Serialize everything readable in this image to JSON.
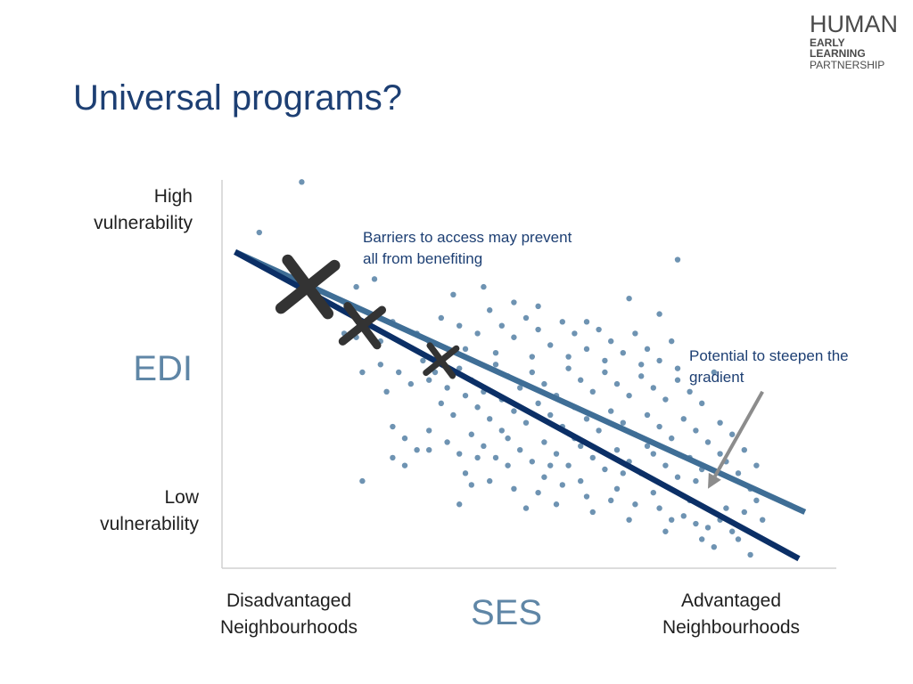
{
  "slide": {
    "title": "Universal programs?",
    "logo": {
      "line1": "HUMAN",
      "line2": "EARLY LEARNING",
      "line3": "PARTNERSHIP"
    }
  },
  "colors": {
    "title": "#1d3f73",
    "axis_title": "#5f86a6",
    "points": "#6e93b2",
    "line_light": "#3f6e96",
    "line_dark": "#0b2f66",
    "marker": "#333333",
    "arrow": "#8c8c8c"
  },
  "chart_data": {
    "type": "scatter",
    "x_label": "SES",
    "y_label": "EDI",
    "x_tick_labels": [
      "Disadvantaged Neighbourhoods",
      "Advantaged Neighbourhoods"
    ],
    "y_tick_labels": [
      "High vulnerability",
      "Low vulnerability"
    ],
    "x_range": [
      0,
      100
    ],
    "y_range": [
      0,
      100
    ],
    "y_direction": "top is high vulnerability",
    "grid": false,
    "annotations": [
      "Barriers to access may prevent all from benefiting",
      "Potential to steepen the gradient"
    ],
    "lines": [
      {
        "color": "light",
        "from": [
          2,
          81
        ],
        "to": [
          96,
          14
        ]
      },
      {
        "color": "dark",
        "from": [
          2,
          81
        ],
        "to": [
          95,
          2
        ]
      }
    ],
    "markers": [
      {
        "x": 14,
        "y": 72,
        "size": "large"
      },
      {
        "x": 23,
        "y": 62,
        "size": "medium"
      },
      {
        "x": 36,
        "y": 53,
        "size": "small"
      }
    ],
    "arrow": {
      "from": [
        89,
        45
      ],
      "to": [
        80,
        20
      ]
    },
    "points": [
      [
        13,
        99
      ],
      [
        6,
        86
      ],
      [
        75,
        79
      ],
      [
        22,
        72
      ],
      [
        25,
        74
      ],
      [
        38,
        70
      ],
      [
        43,
        72
      ],
      [
        52,
        67
      ],
      [
        67,
        69
      ],
      [
        72,
        65
      ],
      [
        20,
        60
      ],
      [
        22,
        59
      ],
      [
        26,
        58
      ],
      [
        28,
        63
      ],
      [
        32,
        60
      ],
      [
        34,
        58
      ],
      [
        36,
        64
      ],
      [
        39,
        62
      ],
      [
        42,
        60
      ],
      [
        44,
        66
      ],
      [
        46,
        62
      ],
      [
        48,
        59
      ],
      [
        50,
        64
      ],
      [
        52,
        61
      ],
      [
        54,
        57
      ],
      [
        56,
        63
      ],
      [
        58,
        60
      ],
      [
        60,
        56
      ],
      [
        62,
        61
      ],
      [
        64,
        58
      ],
      [
        66,
        55
      ],
      [
        68,
        60
      ],
      [
        70,
        56
      ],
      [
        72,
        53
      ],
      [
        74,
        58
      ],
      [
        26,
        52
      ],
      [
        29,
        50
      ],
      [
        31,
        47
      ],
      [
        33,
        53
      ],
      [
        35,
        50
      ],
      [
        37,
        46
      ],
      [
        39,
        51
      ],
      [
        41,
        48
      ],
      [
        43,
        45
      ],
      [
        45,
        52
      ],
      [
        47,
        49
      ],
      [
        49,
        46
      ],
      [
        51,
        50
      ],
      [
        53,
        47
      ],
      [
        55,
        44
      ],
      [
        57,
        51
      ],
      [
        59,
        48
      ],
      [
        61,
        45
      ],
      [
        63,
        50
      ],
      [
        65,
        47
      ],
      [
        67,
        44
      ],
      [
        69,
        49
      ],
      [
        71,
        46
      ],
      [
        73,
        43
      ],
      [
        75,
        48
      ],
      [
        77,
        45
      ],
      [
        79,
        42
      ],
      [
        23,
        50
      ],
      [
        27,
        45
      ],
      [
        36,
        42
      ],
      [
        38,
        39
      ],
      [
        40,
        44
      ],
      [
        42,
        41
      ],
      [
        44,
        38
      ],
      [
        46,
        43
      ],
      [
        48,
        40
      ],
      [
        50,
        37
      ],
      [
        52,
        42
      ],
      [
        54,
        39
      ],
      [
        56,
        36
      ],
      [
        58,
        41
      ],
      [
        60,
        38
      ],
      [
        62,
        35
      ],
      [
        64,
        40
      ],
      [
        66,
        37
      ],
      [
        68,
        34
      ],
      [
        70,
        39
      ],
      [
        72,
        36
      ],
      [
        74,
        33
      ],
      [
        76,
        38
      ],
      [
        78,
        35
      ],
      [
        80,
        32
      ],
      [
        82,
        37
      ],
      [
        84,
        34
      ],
      [
        86,
        30
      ],
      [
        28,
        36
      ],
      [
        30,
        33
      ],
      [
        32,
        30
      ],
      [
        34,
        35
      ],
      [
        37,
        32
      ],
      [
        39,
        29
      ],
      [
        41,
        34
      ],
      [
        43,
        31
      ],
      [
        45,
        28
      ],
      [
        47,
        33
      ],
      [
        49,
        30
      ],
      [
        51,
        27
      ],
      [
        53,
        32
      ],
      [
        55,
        29
      ],
      [
        57,
        26
      ],
      [
        59,
        31
      ],
      [
        61,
        28
      ],
      [
        63,
        25
      ],
      [
        65,
        30
      ],
      [
        67,
        27
      ],
      [
        69,
        24
      ],
      [
        71,
        29
      ],
      [
        73,
        26
      ],
      [
        75,
        23
      ],
      [
        77,
        28
      ],
      [
        79,
        25
      ],
      [
        81,
        22
      ],
      [
        83,
        27
      ],
      [
        85,
        24
      ],
      [
        87,
        20
      ],
      [
        28,
        28
      ],
      [
        30,
        26
      ],
      [
        23,
        22
      ],
      [
        34,
        30
      ],
      [
        40,
        24
      ],
      [
        44,
        22
      ],
      [
        48,
        20
      ],
      [
        52,
        19
      ],
      [
        56,
        21
      ],
      [
        60,
        18
      ],
      [
        64,
        17
      ],
      [
        68,
        16
      ],
      [
        72,
        15
      ],
      [
        76,
        13
      ],
      [
        78,
        11
      ],
      [
        80,
        10
      ],
      [
        82,
        12
      ],
      [
        84,
        9
      ],
      [
        86,
        14
      ],
      [
        88,
        17
      ],
      [
        41,
        21
      ],
      [
        47,
        26
      ],
      [
        53,
        23
      ],
      [
        59,
        22
      ],
      [
        65,
        20
      ],
      [
        71,
        19
      ],
      [
        77,
        17
      ],
      [
        83,
        15
      ],
      [
        79,
        7
      ],
      [
        74,
        12
      ],
      [
        55,
        16
      ],
      [
        50,
        15
      ],
      [
        39,
        16
      ],
      [
        61,
        14
      ],
      [
        67,
        12
      ],
      [
        73,
        9
      ],
      [
        81,
        5
      ],
      [
        85,
        7
      ],
      [
        89,
        12
      ],
      [
        87,
        3
      ],
      [
        45,
        55
      ],
      [
        51,
        54
      ],
      [
        57,
        54
      ],
      [
        63,
        53
      ],
      [
        69,
        52
      ],
      [
        75,
        51
      ],
      [
        81,
        50
      ],
      [
        40,
        56
      ],
      [
        34,
        48
      ],
      [
        46,
        35
      ],
      [
        58,
        33
      ],
      [
        70,
        31
      ],
      [
        82,
        29
      ],
      [
        88,
        26
      ],
      [
        42,
        28
      ],
      [
        54,
        26
      ],
      [
        66,
        24
      ],
      [
        78,
        22
      ],
      [
        60,
        63
      ],
      [
        48,
        68
      ]
    ]
  }
}
